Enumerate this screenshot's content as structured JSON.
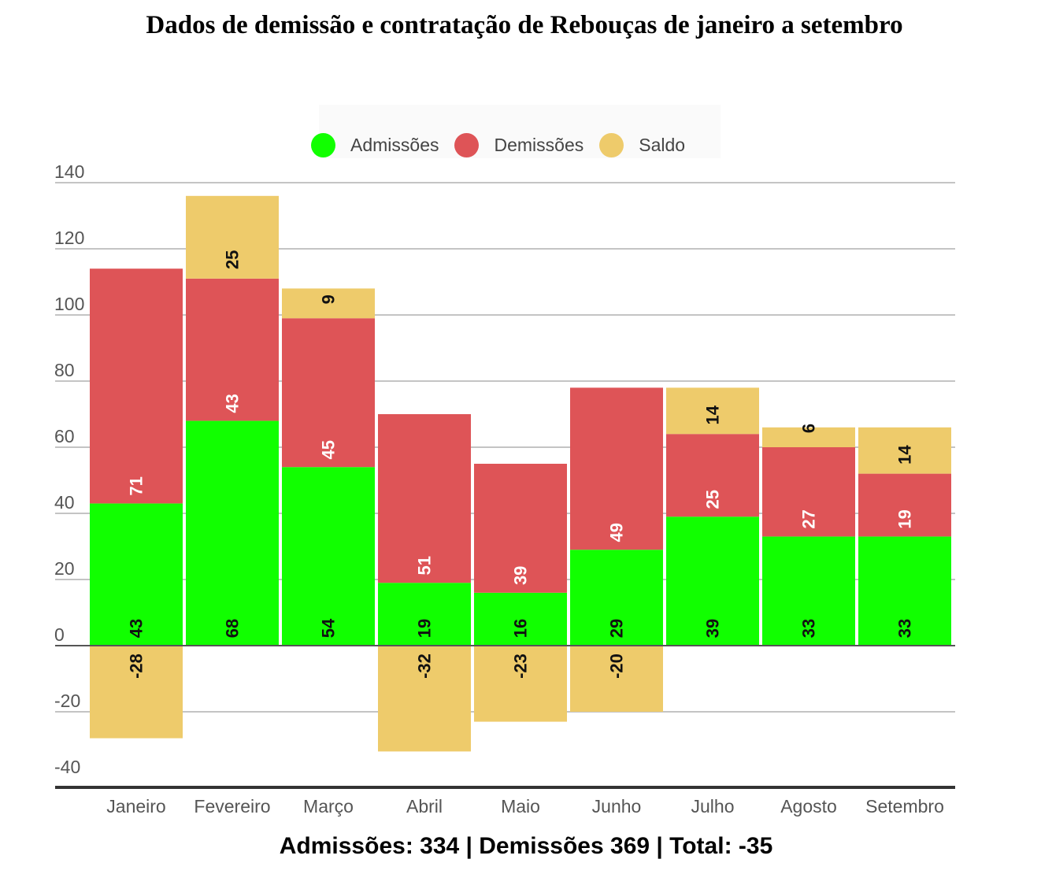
{
  "title": "Dados de demissão e contratação de Rebouças de janeiro a setembro",
  "legend": [
    {
      "label": "Admissões",
      "color": "#11ff00"
    },
    {
      "label": "Demissões",
      "color": "#de5457"
    },
    {
      "label": "Saldo",
      "color": "#eecb6b"
    }
  ],
  "footer": "Admissões: 334 | Demissões 369 | Total: -35",
  "chart_data": {
    "type": "bar",
    "stacked": true,
    "title": "Dados de demissão e contratação de Rebouças de janeiro a setembro",
    "categories": [
      "Janeiro",
      "Fevereiro",
      "Março",
      "Abril",
      "Maio",
      "Junho",
      "Julho",
      "Agosto",
      "Setembro"
    ],
    "series": [
      {
        "name": "Admissões",
        "values": [
          43,
          68,
          54,
          19,
          16,
          29,
          39,
          33,
          33
        ]
      },
      {
        "name": "Demissões",
        "values": [
          71,
          43,
          45,
          51,
          39,
          49,
          25,
          27,
          19
        ]
      },
      {
        "name": "Saldo",
        "values": [
          -28,
          25,
          9,
          -32,
          -23,
          -20,
          14,
          6,
          14
        ]
      }
    ],
    "yticks": [
      140,
      120,
      100,
      80,
      60,
      40,
      20,
      0,
      -20,
      -40
    ],
    "ylim": [
      -43,
      140
    ],
    "grid": true,
    "legend_position": "top"
  }
}
